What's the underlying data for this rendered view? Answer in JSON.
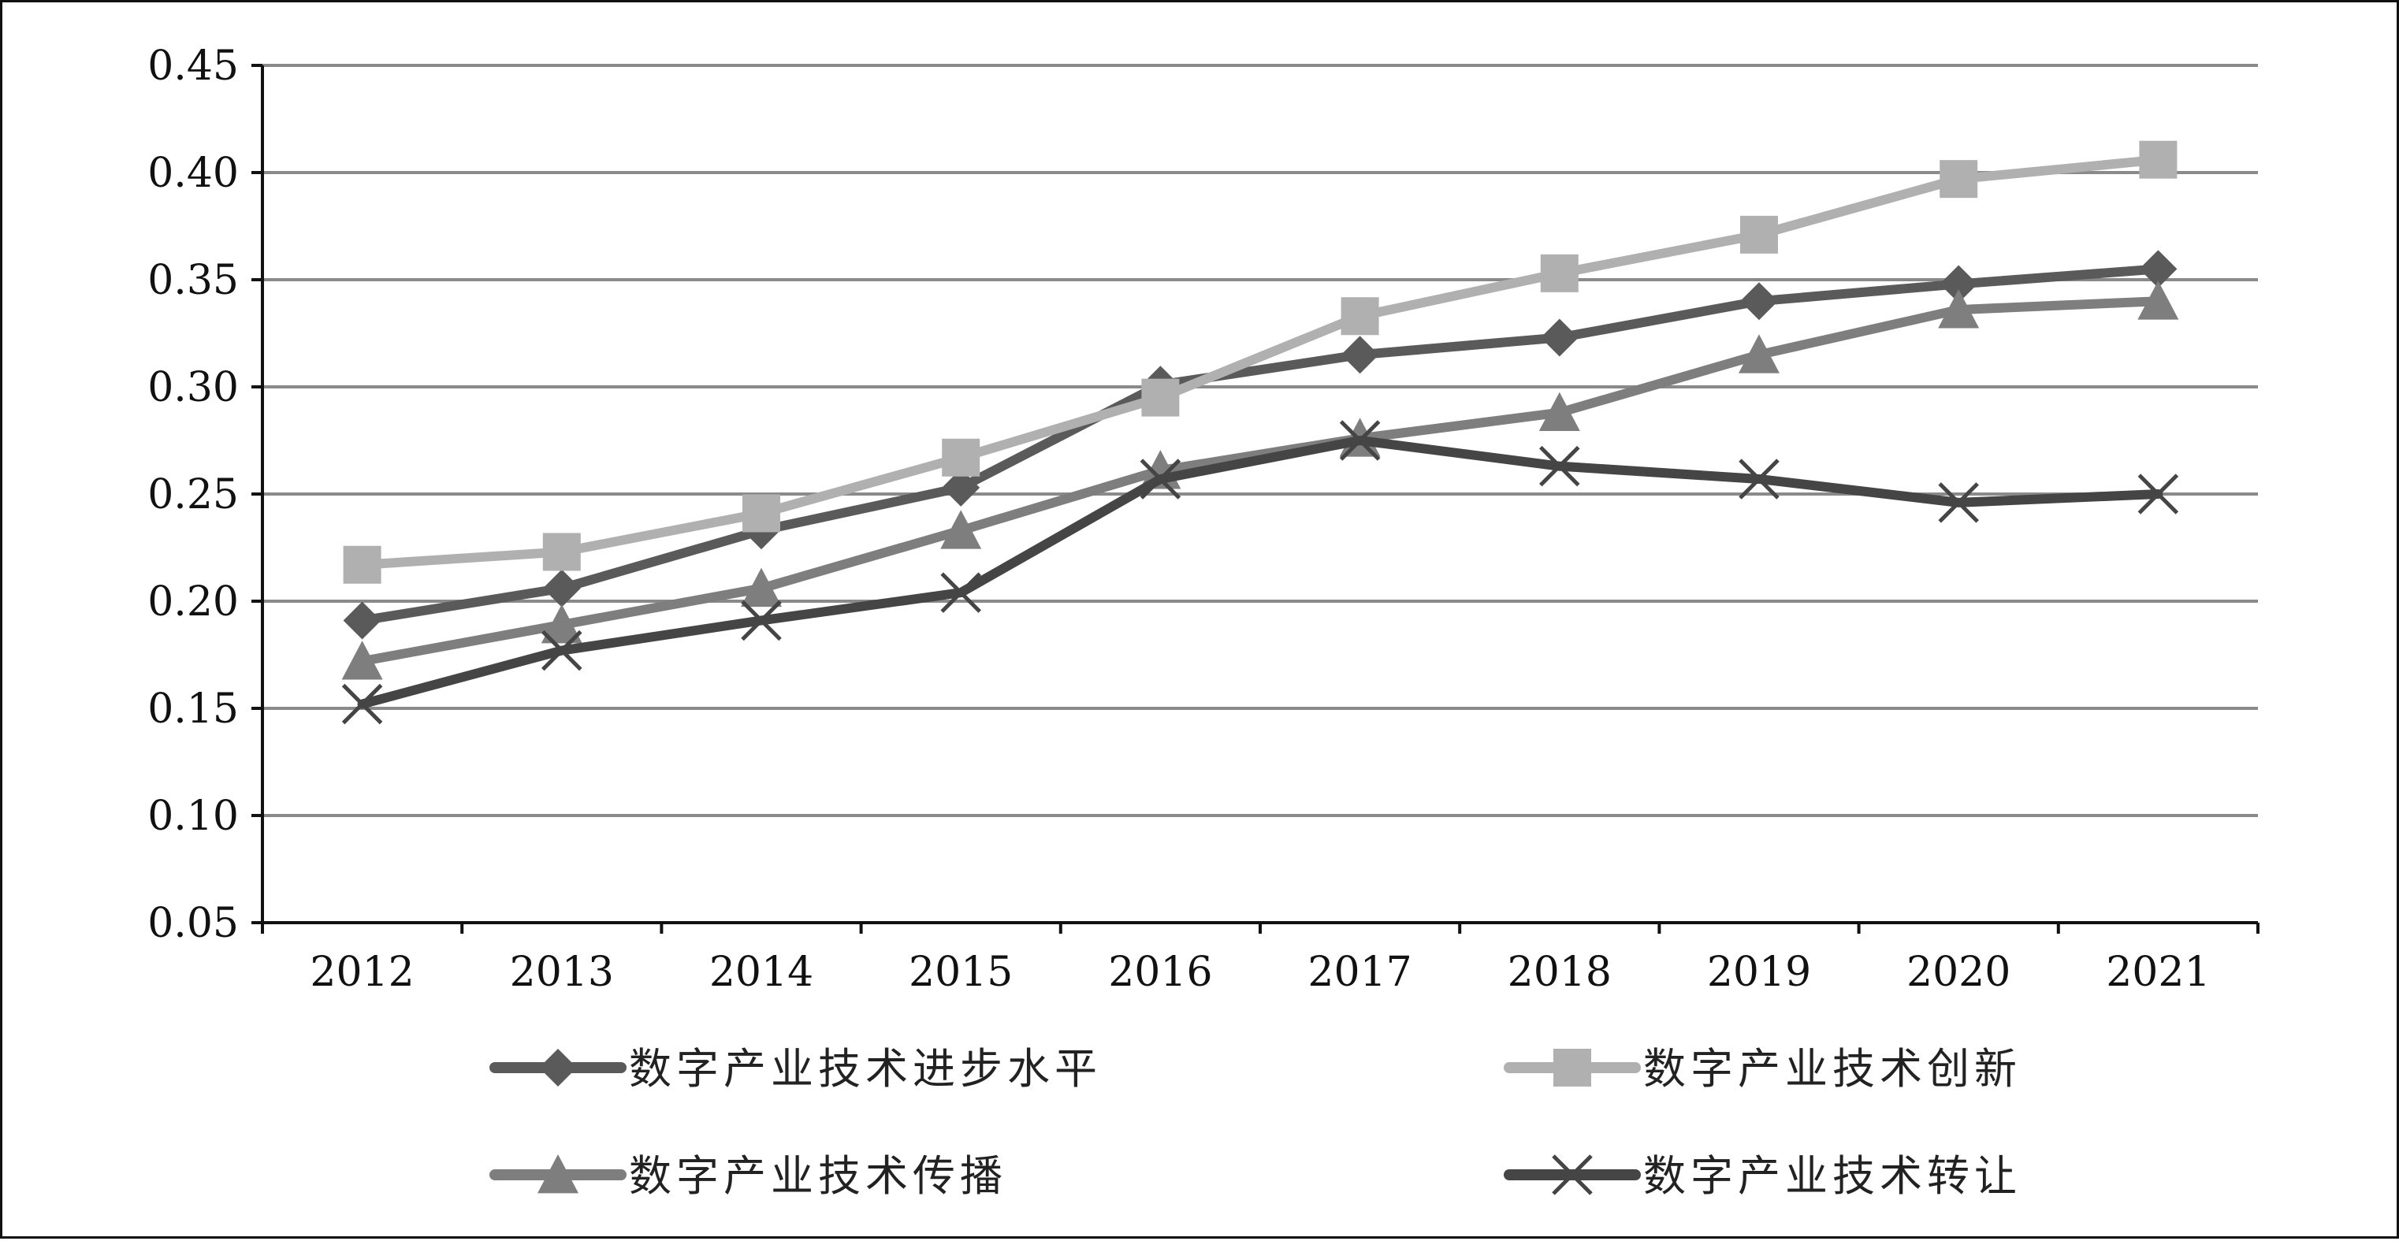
{
  "chart_data": {
    "type": "line",
    "categories": [
      "2012",
      "2013",
      "2014",
      "2015",
      "2016",
      "2017",
      "2018",
      "2019",
      "2020",
      "2021"
    ],
    "ylim": [
      0.05,
      0.45
    ],
    "yticks": [
      "0.05",
      "0.10",
      "0.15",
      "0.20",
      "0.25",
      "0.30",
      "0.35",
      "0.40",
      "0.45"
    ],
    "grid": true,
    "legend_position": "bottom",
    "series": [
      {
        "name": "数字产业技术进步水平",
        "marker": "diamond",
        "color": "#5a5a5a",
        "values": [
          0.191,
          0.206,
          0.233,
          0.253,
          0.301,
          0.315,
          0.323,
          0.34,
          0.348,
          0.355
        ]
      },
      {
        "name": "数字产业技术创新",
        "marker": "square",
        "color": "#b0b0b0",
        "values": [
          0.217,
          0.223,
          0.241,
          0.267,
          0.295,
          0.333,
          0.353,
          0.371,
          0.397,
          0.406
        ]
      },
      {
        "name": "数字产业技术传播",
        "marker": "triangle",
        "color": "#7e7e7e",
        "values": [
          0.172,
          0.189,
          0.206,
          0.233,
          0.261,
          0.276,
          0.288,
          0.315,
          0.336,
          0.34
        ]
      },
      {
        "name": "数字产业技术转让",
        "marker": "x",
        "color": "#454545",
        "values": [
          0.152,
          0.177,
          0.191,
          0.204,
          0.257,
          0.275,
          0.263,
          0.257,
          0.246,
          0.25
        ]
      }
    ]
  }
}
